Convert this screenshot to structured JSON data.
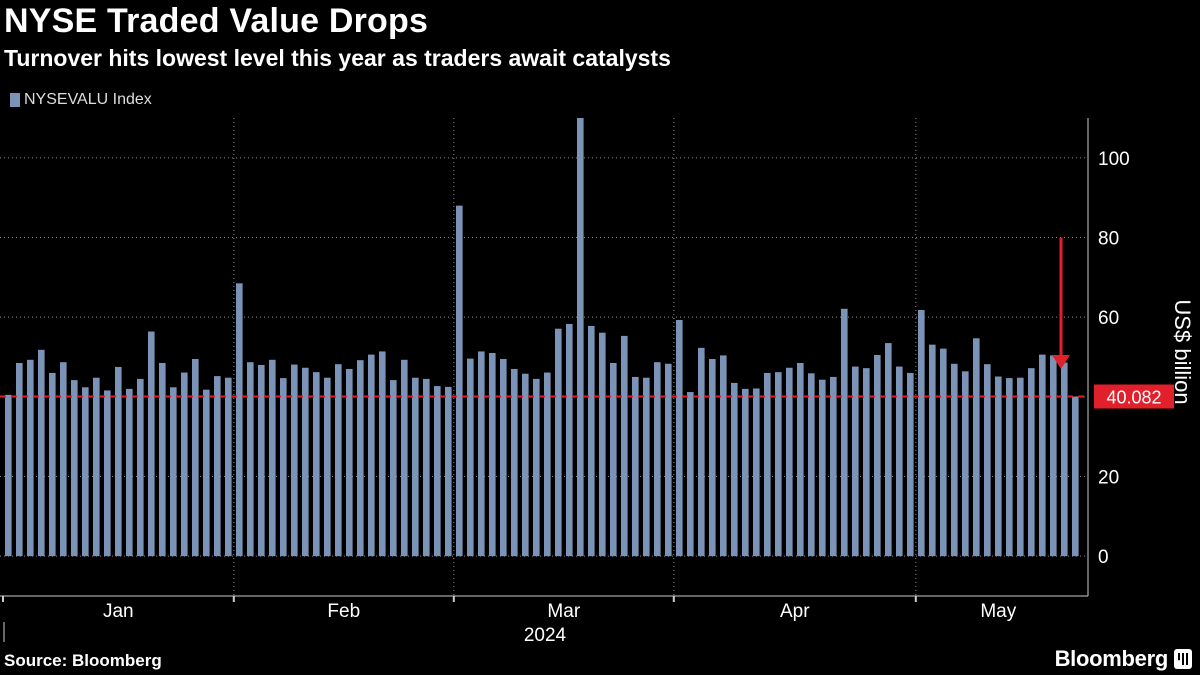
{
  "header": {
    "title": "NYSE Traded Value Drops",
    "subtitle": "Turnover hits lowest level this year as traders await catalysts"
  },
  "footer": {
    "source": "Source: Bloomberg",
    "brand": "Bloomberg"
  },
  "colors": {
    "background": "#000000",
    "bar": "#7b93b7",
    "highlight": "#e2202c",
    "grid": "#8a8a8a",
    "text": "#ffffff"
  },
  "chart_data": {
    "type": "bar",
    "title": "NYSE Traded Value Drops",
    "subtitle": "Turnover hits lowest level this year as traders await catalysts",
    "series": [
      {
        "name": "NYSEVALU Index",
        "values": [
          40.5,
          48.5,
          49.3,
          51.8,
          46.0,
          48.7,
          44.2,
          42.4,
          44.8,
          41.6,
          47.5,
          42.0,
          44.5,
          56.4,
          48.5,
          42.4,
          46.1,
          49.5,
          41.8,
          45.2,
          44.8,
          68.5,
          48.7,
          48.0,
          49.3,
          44.7,
          48.1,
          47.3,
          46.2,
          44.8,
          48.2,
          47.0,
          49.2,
          50.6,
          51.4,
          44.2,
          49.3,
          44.8,
          44.5,
          42.7,
          42.5,
          88.0,
          49.6,
          51.4,
          51.0,
          49.5,
          47.0,
          45.8,
          44.5,
          46.1,
          57.1,
          58.3,
          110.0,
          57.8,
          56.1,
          48.5,
          55.3,
          45.0,
          44.8,
          48.7,
          48.3,
          59.3,
          41.2,
          52.3,
          49.5,
          50.4,
          43.5,
          42.0,
          42.1,
          46.0,
          46.2,
          47.3,
          48.5,
          45.9,
          44.3,
          45.0,
          62.1,
          47.6,
          47.2,
          50.5,
          53.5,
          47.6,
          46.0,
          61.8,
          53.1,
          52.1,
          48.3,
          46.4,
          54.7,
          48.2,
          45.1,
          44.7,
          44.8,
          47.2,
          50.6,
          50.4,
          48.6,
          40.082
        ]
      }
    ],
    "xlabel": "2024",
    "ylabel": "US$ billion",
    "ylim": [
      -10,
      110
    ],
    "yticks": [
      0,
      20,
      40,
      60,
      80,
      100
    ],
    "ytick_labels": [
      "0",
      "20",
      "40",
      "60",
      "80",
      "100"
    ],
    "month_labels": [
      {
        "label": "Jan",
        "first_bar": 0
      },
      {
        "label": "Feb",
        "first_bar": 21
      },
      {
        "label": "Mar",
        "first_bar": 41
      },
      {
        "label": "Apr",
        "first_bar": 61
      },
      {
        "label": "May",
        "first_bar": 83
      }
    ],
    "reference_line": {
      "value": 40.082,
      "label": "40.082"
    },
    "annotation": {
      "type": "arrow",
      "from": 80,
      "to": 47
    },
    "legend": "top-left",
    "grid": true
  }
}
